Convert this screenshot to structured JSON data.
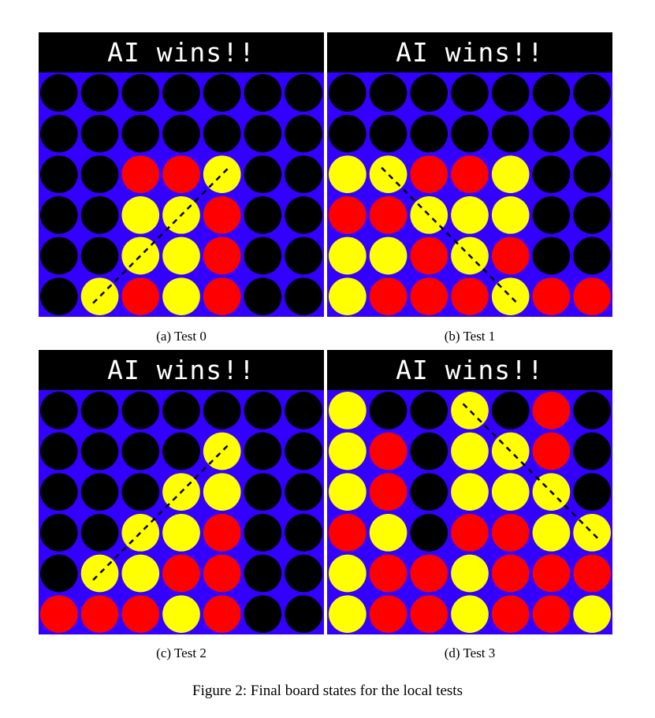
{
  "colors": {
    "board": "#3300ff",
    "empty": "#000000",
    "red": "#ff0000",
    "yellow": "#ffff00",
    "header_bg": "#000000",
    "header_text": "#ffffff"
  },
  "panels": [
    {
      "header": "AI wins!!",
      "caption": "(a) Test 0",
      "grid": [
        "EEEEEEE",
        "EEEEEEE",
        "EERRYEE",
        "EEYYREE",
        "EEYYREE",
        "EYRYREE"
      ],
      "win_line": {
        "from": [
          5,
          1
        ],
        "to": [
          2,
          4
        ]
      }
    },
    {
      "header": "AI wins!!",
      "caption": "(b) Test 1",
      "grid": [
        "EEEEEEE",
        "EEEEEEE",
        "YYRRYEE",
        "RRYYYEE",
        "YYRYREE",
        "YRRRYRR"
      ],
      "win_line": {
        "from": [
          2,
          1
        ],
        "to": [
          5,
          4
        ]
      }
    },
    {
      "header": "AI wins!!",
      "caption": "(c) Test 2",
      "grid": [
        "EEEEEEE",
        "EEEEYEE",
        "EEEYYEE",
        "EEYYREE",
        "EYYRREE",
        "RRRYREE"
      ],
      "win_line": {
        "from": [
          4,
          1
        ],
        "to": [
          1,
          4
        ]
      }
    },
    {
      "header": "AI wins!!",
      "caption": "(d) Test 3",
      "grid": [
        "YEEYERE",
        "YREYYRE",
        "YREYYYE",
        "RYERRYY",
        "YRRYRRR",
        "YRRYRRY"
      ],
      "win_line": {
        "from": [
          0,
          3
        ],
        "to": [
          3,
          6
        ]
      }
    }
  ],
  "figure_caption": "Figure 2: Final board states for the local tests"
}
